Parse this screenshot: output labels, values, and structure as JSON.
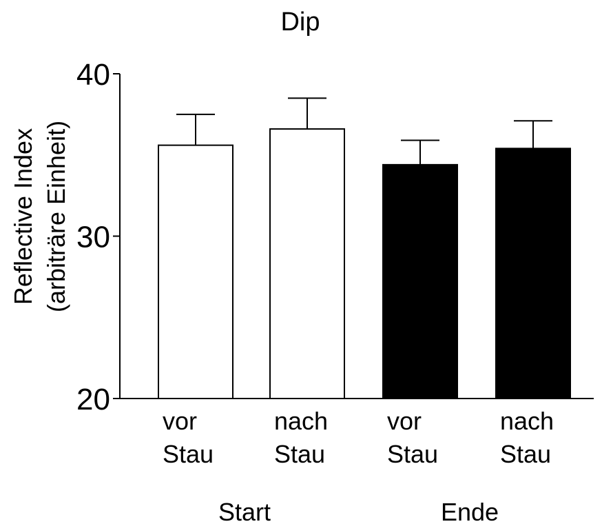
{
  "chart_data": {
    "type": "bar",
    "title": "Dip",
    "ylabel": [
      "Reflective Index",
      "(arbiträre Einheit)"
    ],
    "xlabel": "",
    "ylim": [
      20,
      40
    ],
    "yticks": [
      20,
      30,
      40
    ],
    "categories": [
      [
        "vor",
        "Stau"
      ],
      [
        "nach",
        "Stau"
      ],
      [
        "vor",
        "Stau"
      ],
      [
        "nach",
        "Stau"
      ]
    ],
    "groups": [
      {
        "label": "Start",
        "categories": [
          0,
          1
        ]
      },
      {
        "label": "Ende",
        "categories": [
          2,
          3
        ]
      }
    ],
    "values": [
      35.6,
      36.6,
      34.4,
      35.4
    ],
    "errors": [
      1.9,
      1.9,
      1.5,
      1.7
    ],
    "bar_colors": [
      "#ffffff",
      "#ffffff",
      "#000000",
      "#000000"
    ],
    "grid": false,
    "legend": "none"
  }
}
